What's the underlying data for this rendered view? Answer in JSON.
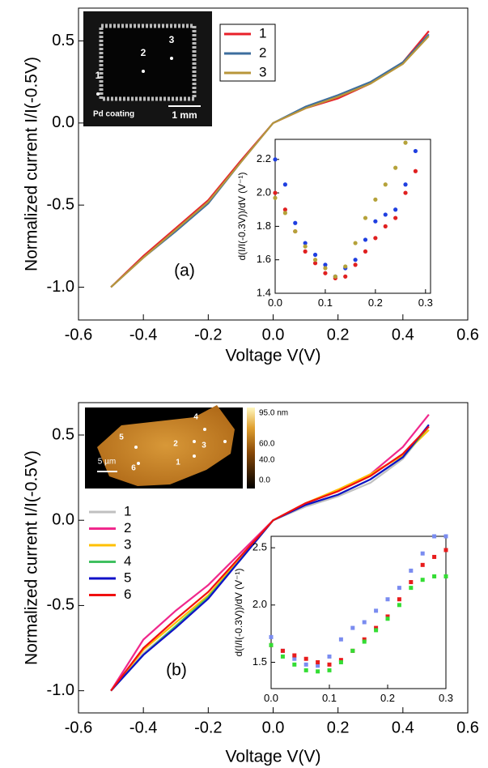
{
  "chart_data": [
    {
      "type": "line",
      "annotation": "(a)",
      "xlabel": "Voltage V(V)",
      "ylabel": "Normalized current I/I(-0.5V)",
      "x": [
        -0.5,
        -0.4,
        -0.3,
        -0.2,
        -0.1,
        0,
        0.1,
        0.2,
        0.3,
        0.4,
        0.48
      ],
      "series": [
        {
          "name": "1",
          "color": "#e8202a",
          "values": [
            -1.0,
            -0.81,
            -0.64,
            -0.47,
            -0.23,
            0.0,
            0.09,
            0.15,
            0.24,
            0.37,
            0.56
          ]
        },
        {
          "name": "2",
          "color": "#3d6e9e",
          "values": [
            -1.0,
            -0.82,
            -0.66,
            -0.49,
            -0.24,
            0.0,
            0.1,
            0.17,
            0.25,
            0.37,
            0.54
          ]
        },
        {
          "name": "3",
          "color": "#b8963a",
          "values": [
            -1.0,
            -0.82,
            -0.65,
            -0.48,
            -0.24,
            0.0,
            0.09,
            0.16,
            0.24,
            0.36,
            0.53
          ]
        }
      ],
      "xlim": [
        -0.6,
        0.6
      ],
      "ylim": [
        -1.2,
        0.7
      ],
      "xticks": [
        -0.6,
        -0.4,
        -0.2,
        {
          "value": 0,
          "label": "0.0"
        },
        0.2,
        0.4,
        0.6
      ],
      "yticks": [
        {
          "value": -1,
          "label": "-1.0"
        },
        -0.5,
        {
          "value": 0,
          "label": "0.0"
        },
        0.5
      ],
      "legend": true
    },
    {
      "type": "scatter",
      "marker": "circle",
      "ylabel": "d(I/I(-0.3V))/dV (V⁻¹)",
      "x": [
        0,
        0.02,
        0.04,
        0.06,
        0.08,
        0.1,
        0.12,
        0.14,
        0.16,
        0.18,
        0.2,
        0.22,
        0.24,
        0.26,
        0.28
      ],
      "series": [
        {
          "color": "#1f3fe0",
          "values": [
            2.2,
            2.05,
            1.82,
            1.7,
            1.63,
            1.57,
            1.5,
            1.55,
            1.6,
            1.72,
            1.83,
            1.87,
            1.9,
            2.05,
            2.25
          ]
        },
        {
          "color": "#e02020",
          "values": [
            2.0,
            1.9,
            1.77,
            1.65,
            1.58,
            1.52,
            1.49,
            1.5,
            1.57,
            1.65,
            1.73,
            1.8,
            1.85,
            2.0,
            2.13
          ]
        },
        {
          "color": "#b5a23a",
          "values": [
            1.97,
            1.88,
            1.77,
            1.68,
            1.6,
            1.55,
            1.5,
            1.56,
            1.7,
            1.85,
            1.96,
            2.05,
            2.15,
            2.3,
            null
          ]
        }
      ],
      "xlim": [
        0,
        0.31
      ],
      "ylim": [
        1.4,
        2.32
      ],
      "xticks": [
        {
          "value": 0,
          "label": "0.0"
        },
        0.1,
        0.2,
        0.3
      ],
      "yticks": [
        1.4,
        1.6,
        1.8,
        {
          "value": 2,
          "label": "2.0"
        },
        2.2
      ]
    },
    {
      "type": "line",
      "annotation": "(b)",
      "xlabel": "Voltage V(V)",
      "ylabel": "Normalized current I/I(-0.5V)",
      "x": [
        -0.5,
        -0.4,
        -0.3,
        -0.2,
        -0.1,
        0,
        0.1,
        0.2,
        0.3,
        0.4,
        0.48
      ],
      "series": [
        {
          "name": "1",
          "color": "#c0c0c0",
          "values": [
            -1.0,
            -0.78,
            -0.62,
            -0.45,
            -0.23,
            0.0,
            0.08,
            0.14,
            0.22,
            0.36,
            0.55
          ]
        },
        {
          "name": "2",
          "color": "#f0288c",
          "values": [
            -1.0,
            -0.7,
            -0.53,
            -0.38,
            -0.19,
            0.0,
            0.1,
            0.17,
            0.27,
            0.43,
            0.62
          ]
        },
        {
          "name": "3",
          "color": "#ffc000",
          "values": [
            -1.0,
            -0.76,
            -0.6,
            -0.44,
            -0.22,
            0.0,
            0.1,
            0.18,
            0.27,
            0.38,
            0.53
          ]
        },
        {
          "name": "4",
          "color": "#40c060",
          "values": [
            -1.0,
            -0.79,
            -0.62,
            -0.45,
            -0.23,
            0.0,
            0.09,
            0.15,
            0.24,
            0.37,
            0.55
          ]
        },
        {
          "name": "5",
          "color": "#1010c8",
          "values": [
            -1.0,
            -0.79,
            -0.63,
            -0.46,
            -0.23,
            0.0,
            0.09,
            0.15,
            0.24,
            0.37,
            0.56
          ]
        },
        {
          "name": "6",
          "color": "#f01010",
          "values": [
            -1.0,
            -0.75,
            -0.58,
            -0.42,
            -0.21,
            0.0,
            0.1,
            0.17,
            0.26,
            0.39,
            0.55
          ]
        }
      ],
      "xlim": [
        -0.6,
        0.6
      ],
      "ylim": [
        -1.13,
        0.69
      ],
      "xticks": [
        -0.6,
        -0.4,
        -0.2,
        {
          "value": 0,
          "label": "0.0"
        },
        0.2,
        0.4,
        0.6
      ],
      "yticks": [
        {
          "value": -1,
          "label": "-1.0"
        },
        -0.5,
        {
          "value": 0,
          "label": "0.0"
        },
        0.5
      ],
      "legend": true
    },
    {
      "type": "scatter",
      "marker": "square",
      "ylabel": "d(I/I(-0.3V))/dV (V⁻¹)",
      "x": [
        0,
        0.02,
        0.04,
        0.06,
        0.08,
        0.1,
        0.12,
        0.14,
        0.16,
        0.18,
        0.2,
        0.22,
        0.24,
        0.26,
        0.28,
        0.3
      ],
      "series": [
        {
          "color": "#7a8cf0",
          "values": [
            1.72,
            1.6,
            1.53,
            1.48,
            1.47,
            1.55,
            1.7,
            1.8,
            1.85,
            1.95,
            2.05,
            2.15,
            2.3,
            2.45,
            2.6,
            2.6
          ]
        },
        {
          "color": "#e81c1c",
          "values": [
            1.65,
            1.6,
            1.56,
            1.53,
            1.5,
            1.48,
            1.52,
            1.6,
            1.7,
            1.8,
            1.9,
            2.05,
            2.2,
            2.35,
            2.42,
            2.48
          ]
        },
        {
          "color": "#33dd33",
          "values": [
            1.65,
            1.55,
            1.48,
            1.43,
            1.42,
            1.43,
            1.5,
            1.6,
            1.68,
            1.78,
            1.88,
            2.0,
            2.15,
            2.22,
            2.25,
            2.25
          ]
        }
      ],
      "xlim": [
        0,
        0.3
      ],
      "ylim": [
        1.27,
        2.6
      ],
      "xticks": [
        {
          "value": 0,
          "label": "0.0"
        },
        0.1,
        0.2,
        0.3
      ],
      "yticks": [
        1.5,
        {
          "value": 2,
          "label": "2.0"
        },
        2.5
      ]
    }
  ],
  "images": [
    {
      "point_labels": [
        "1",
        "2",
        "3"
      ],
      "caption": "Pd coating",
      "scale_bar": "1 mm"
    },
    {
      "point_labels": [
        "1",
        "2",
        "3",
        "4",
        "5",
        "6"
      ],
      "scale_bar": "5 µm",
      "colorbar_labels": [
        "95.0 nm",
        "60.0",
        "40.0",
        "0.0"
      ]
    }
  ]
}
